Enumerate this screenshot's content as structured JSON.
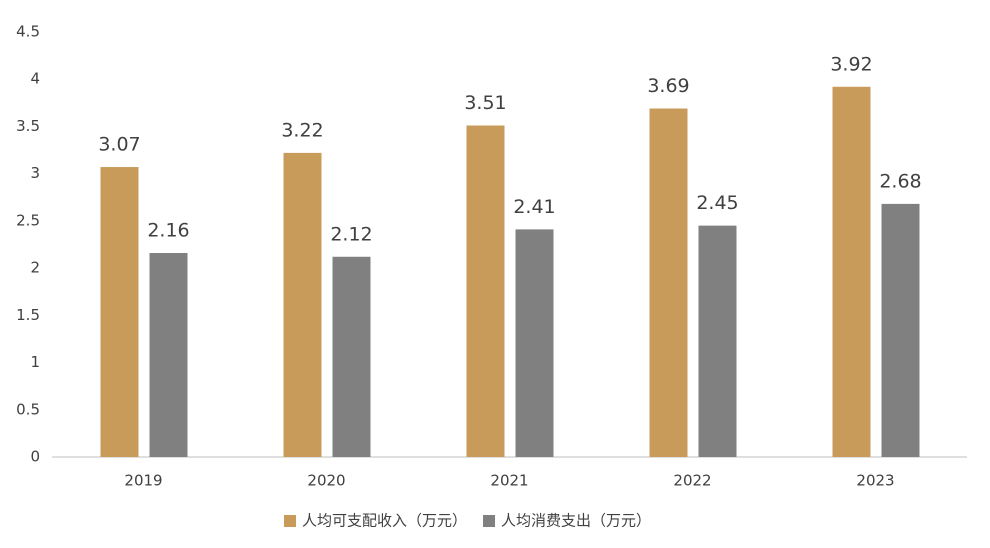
{
  "chart_data": {
    "type": "bar",
    "categories": [
      "2019",
      "2020",
      "2021",
      "2022",
      "2023"
    ],
    "series": [
      {
        "name": "人均可支配收入（万元）",
        "color": "#c89b5a",
        "values": [
          3.07,
          3.22,
          3.51,
          3.69,
          3.92
        ]
      },
      {
        "name": "人均消费支出（万元）",
        "color": "#808080",
        "values": [
          2.16,
          2.12,
          2.41,
          2.45,
          2.68
        ]
      }
    ],
    "ylim": [
      0,
      4.5
    ],
    "yticks": [
      0,
      0.5,
      1,
      1.5,
      2,
      2.5,
      3,
      3.5,
      4,
      4.5
    ],
    "grid": false,
    "legend": "bottom"
  }
}
